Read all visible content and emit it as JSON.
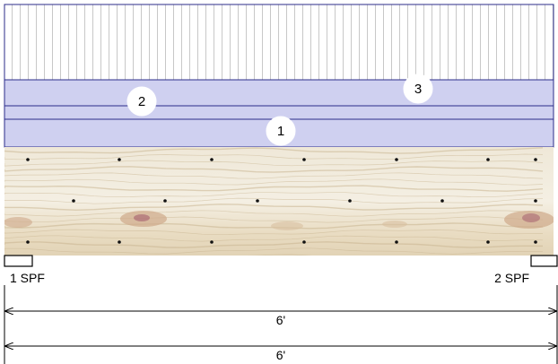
{
  "layers": [
    {
      "number": "1"
    },
    {
      "number": "2"
    },
    {
      "number": "3"
    }
  ],
  "supports": {
    "left_label": "1 SPF",
    "right_label": "2 SPF"
  },
  "dimensions": {
    "span_top": "6'",
    "span_bottom": "6'"
  },
  "colors": {
    "sheathing_fill": "#cfd0f0",
    "outline": "#2b2b8a",
    "vertical_hatch": "#c8c8c8",
    "wood_base": "#ece4d2",
    "grain": "#c9b48f",
    "knot": "#a0566a",
    "nail": "#111111"
  }
}
